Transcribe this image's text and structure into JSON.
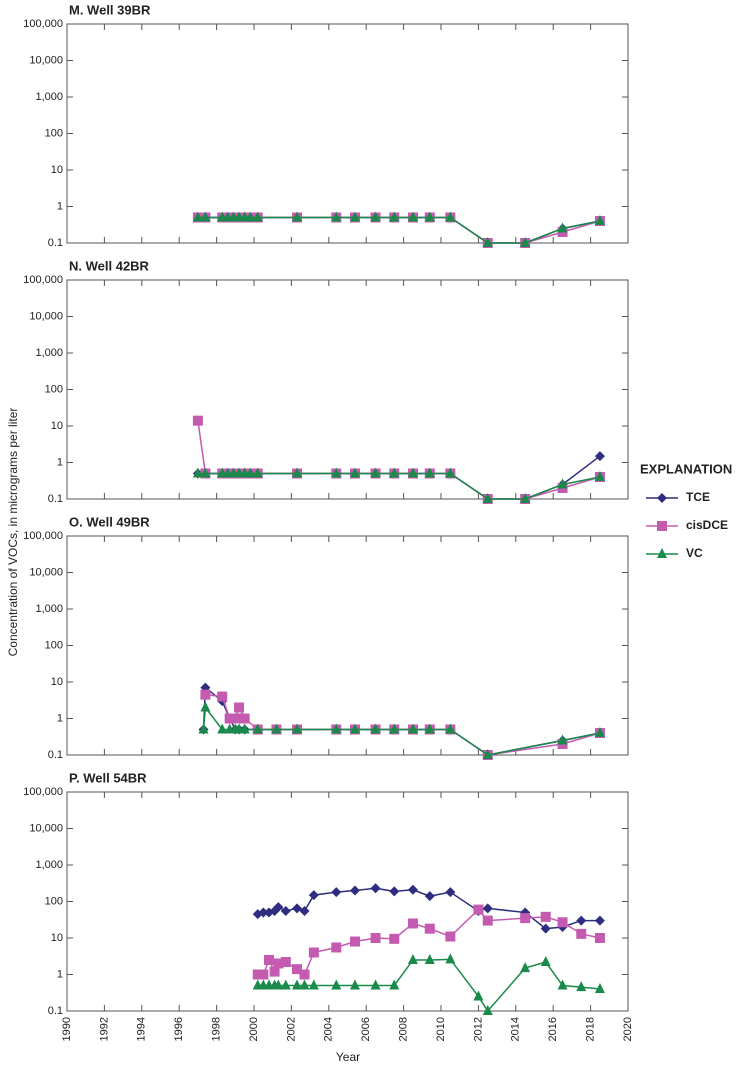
{
  "shared": {
    "y_label": "Concentration of VOCs, in micrograms per liter",
    "x_label": "Year",
    "legend_title": "EXPLANATION"
  },
  "chart_data": [
    {
      "type": "line",
      "title": "M. Well 39BR",
      "log_y": true,
      "xlim": [
        1990,
        2020
      ],
      "ylim": [
        0.1,
        100000
      ],
      "xticks": [
        1990,
        1992,
        1994,
        1996,
        1998,
        2000,
        2002,
        2004,
        2006,
        2008,
        2010,
        2012,
        2014,
        2016,
        2018,
        2020
      ],
      "yticks": [
        0.1,
        1,
        10,
        100,
        {
          "value": 1000,
          "label": "1,000"
        },
        {
          "value": 10000,
          "label": "10,000"
        },
        {
          "value": 100000,
          "label": "100,000"
        }
      ],
      "x": [
        1997.0,
        1997.4,
        1998.3,
        1998.6,
        1998.9,
        1999.2,
        1999.5,
        1999.8,
        2000.2,
        2002.3,
        2004.4,
        2005.4,
        2006.5,
        2007.5,
        2008.5,
        2009.4,
        2010.5,
        2012.5,
        2014.5,
        2016.5,
        2018.5
      ],
      "series": [
        {
          "name": "TCE",
          "color": "#2e2d7f",
          "marker": "diamond",
          "values": [
            0.5,
            0.5,
            0.5,
            0.5,
            0.5,
            0.5,
            0.5,
            0.5,
            0.5,
            0.5,
            0.5,
            0.5,
            0.5,
            0.5,
            0.5,
            0.5,
            0.5,
            0.1,
            0.1,
            0.25,
            0.4
          ]
        },
        {
          "name": "cisDCE",
          "color": "#c45bb0",
          "marker": "square",
          "values": [
            0.5,
            0.5,
            0.5,
            0.5,
            0.5,
            0.5,
            0.5,
            0.5,
            0.5,
            0.5,
            0.5,
            0.5,
            0.5,
            0.5,
            0.5,
            0.5,
            0.5,
            0.1,
            0.1,
            0.2,
            0.4
          ]
        },
        {
          "name": "VC",
          "color": "#1a8a4a",
          "marker": "triangle",
          "values": [
            0.5,
            0.5,
            0.5,
            0.5,
            0.5,
            0.5,
            0.5,
            0.5,
            0.5,
            0.5,
            0.5,
            0.5,
            0.5,
            0.5,
            0.5,
            0.5,
            0.5,
            0.1,
            0.1,
            0.25,
            0.4
          ]
        }
      ]
    },
    {
      "type": "line",
      "title": "N. Well 42BR",
      "log_y": true,
      "xlim": [
        1990,
        2020
      ],
      "ylim": [
        0.1,
        100000
      ],
      "xticks": [
        1990,
        1992,
        1994,
        1996,
        1998,
        2000,
        2002,
        2004,
        2006,
        2008,
        2010,
        2012,
        2014,
        2016,
        2018,
        2020
      ],
      "yticks": [
        0.1,
        1,
        10,
        100,
        {
          "value": 1000,
          "label": "1,000"
        },
        {
          "value": 10000,
          "label": "10,000"
        },
        {
          "value": 100000,
          "label": "100,000"
        }
      ],
      "x": [
        1997.0,
        1997.4,
        1998.3,
        1998.6,
        1998.9,
        1999.2,
        1999.5,
        1999.8,
        2000.2,
        2002.3,
        2004.4,
        2005.4,
        2006.5,
        2007.5,
        2008.5,
        2009.4,
        2010.5,
        2012.5,
        2014.5,
        2016.5,
        2018.5
      ],
      "series": [
        {
          "name": "TCE",
          "color": "#2e2d7f",
          "marker": "diamond",
          "values": [
            0.5,
            0.5,
            0.5,
            0.5,
            0.5,
            0.5,
            0.5,
            0.5,
            0.5,
            0.5,
            0.5,
            0.5,
            0.5,
            0.5,
            0.5,
            0.5,
            0.5,
            0.1,
            0.1,
            0.25,
            1.5
          ]
        },
        {
          "name": "cisDCE",
          "color": "#c45bb0",
          "marker": "square",
          "values": [
            14,
            0.5,
            0.5,
            0.5,
            0.5,
            0.5,
            0.5,
            0.5,
            0.5,
            0.5,
            0.5,
            0.5,
            0.5,
            0.5,
            0.5,
            0.5,
            0.5,
            0.1,
            0.1,
            0.2,
            0.4
          ]
        },
        {
          "name": "VC",
          "color": "#1a8a4a",
          "marker": "triangle",
          "values": [
            0.5,
            0.5,
            0.5,
            0.5,
            0.5,
            0.5,
            0.5,
            0.5,
            0.5,
            0.5,
            0.5,
            0.5,
            0.5,
            0.5,
            0.5,
            0.5,
            0.5,
            0.1,
            0.1,
            0.25,
            0.4
          ]
        }
      ]
    },
    {
      "type": "line",
      "title": "O. Well 49BR",
      "log_y": true,
      "xlim": [
        1990,
        2020
      ],
      "ylim": [
        0.1,
        100000
      ],
      "xticks": [
        1990,
        1992,
        1994,
        1996,
        1998,
        2000,
        2002,
        2004,
        2006,
        2008,
        2010,
        2012,
        2014,
        2016,
        2018,
        2020
      ],
      "yticks": [
        0.1,
        1,
        10,
        100,
        {
          "value": 1000,
          "label": "1,000"
        },
        {
          "value": 10000,
          "label": "10,000"
        },
        {
          "value": 100000,
          "label": "100,000"
        }
      ],
      "x": [
        1997.3,
        1997.4,
        1998.3,
        1998.7,
        1999.0,
        1999.2,
        1999.5,
        2000.2,
        2001.2,
        2002.3,
        2004.4,
        2005.4,
        2006.5,
        2007.5,
        2008.5,
        2009.4,
        2010.5,
        2012.5,
        2016.5,
        2018.5
      ],
      "series": [
        {
          "name": "TCE",
          "color": "#2e2d7f",
          "marker": "diamond",
          "values": [
            0.5,
            7,
            3,
            1,
            0.5,
            0.5,
            0.5,
            0.5,
            0.5,
            0.5,
            0.5,
            0.5,
            0.5,
            0.5,
            0.5,
            0.5,
            0.5,
            0.1,
            0.25,
            0.4
          ]
        },
        {
          "name": "cisDCE",
          "color": "#c45bb0",
          "marker": "square",
          "values": [
            null,
            4.5,
            4,
            1,
            1,
            2,
            1,
            0.5,
            0.5,
            0.5,
            0.5,
            0.5,
            0.5,
            0.5,
            0.5,
            0.5,
            0.5,
            0.1,
            0.2,
            0.4
          ]
        },
        {
          "name": "VC",
          "color": "#1a8a4a",
          "marker": "triangle",
          "values": [
            0.5,
            2,
            0.5,
            0.5,
            0.5,
            0.5,
            0.5,
            0.5,
            0.5,
            0.5,
            0.5,
            0.5,
            0.5,
            0.5,
            0.5,
            0.5,
            0.5,
            0.1,
            0.25,
            0.4
          ]
        }
      ]
    },
    {
      "type": "line",
      "title": "P. Well 54BR",
      "log_y": true,
      "xlim": [
        1990,
        2020
      ],
      "ylim": [
        0.1,
        100000
      ],
      "xticks": [
        1990,
        1992,
        1994,
        1996,
        1998,
        2000,
        2002,
        2004,
        2006,
        2008,
        2010,
        2012,
        2014,
        2016,
        2018,
        2020
      ],
      "yticks": [
        0.1,
        1,
        10,
        100,
        {
          "value": 1000,
          "label": "1,000"
        },
        {
          "value": 10000,
          "label": "10,000"
        },
        {
          "value": 100000,
          "label": "100,000"
        }
      ],
      "x": [
        2000.2,
        2000.5,
        2000.8,
        2001.1,
        2001.3,
        2001.7,
        2002.3,
        2002.7,
        2003.2,
        2004.4,
        2005.4,
        2006.5,
        2007.5,
        2008.5,
        2009.4,
        2010.5,
        2012.0,
        2012.5,
        2014.5,
        2015.6,
        2016.5,
        2017.5,
        2018.5
      ],
      "series": [
        {
          "name": "TCE",
          "color": "#2e2d7f",
          "marker": "diamond",
          "values": [
            45,
            50,
            50,
            55,
            70,
            55,
            65,
            55,
            150,
            180,
            200,
            230,
            190,
            210,
            140,
            180,
            55,
            65,
            50,
            18,
            20,
            30,
            30
          ]
        },
        {
          "name": "cisDCE",
          "color": "#c45bb0",
          "marker": "square",
          "values": [
            1,
            1,
            2.5,
            1.2,
            2,
            2.2,
            1.4,
            1,
            4,
            5.5,
            8,
            10,
            9.5,
            25,
            18,
            11,
            60,
            30,
            35,
            38,
            27,
            13,
            10
          ]
        },
        {
          "name": "VC",
          "color": "#1a8a4a",
          "marker": "triangle",
          "values": [
            0.5,
            0.5,
            0.5,
            0.5,
            0.5,
            0.5,
            0.5,
            0.5,
            0.5,
            0.5,
            0.5,
            0.5,
            0.5,
            2.5,
            2.5,
            2.6,
            0.25,
            0.1,
            1.5,
            2.2,
            0.5,
            0.45,
            0.4
          ]
        }
      ]
    }
  ]
}
